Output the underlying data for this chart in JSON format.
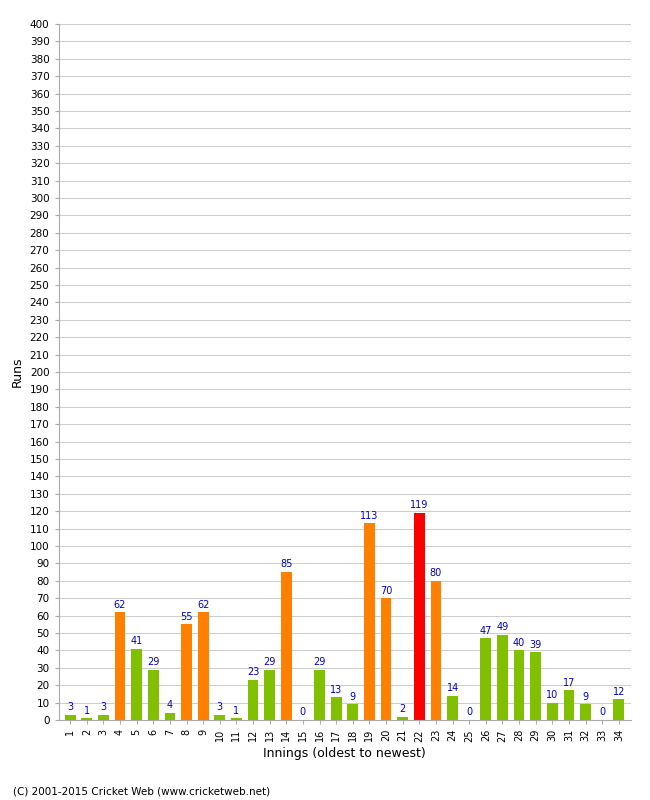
{
  "innings": [
    1,
    2,
    3,
    4,
    5,
    6,
    7,
    8,
    9,
    10,
    11,
    12,
    13,
    14,
    15,
    16,
    17,
    18,
    19,
    20,
    21,
    22,
    23,
    24,
    25,
    26,
    27,
    28,
    29,
    30,
    31,
    32,
    33,
    34
  ],
  "values": [
    3,
    1,
    3,
    62,
    41,
    29,
    4,
    55,
    62,
    3,
    1,
    23,
    29,
    85,
    0,
    29,
    13,
    9,
    113,
    70,
    2,
    119,
    80,
    14,
    0,
    47,
    49,
    40,
    39,
    10,
    17,
    9,
    0,
    12
  ],
  "colors": [
    "#80c000",
    "#80c000",
    "#80c000",
    "#ff8000",
    "#80c000",
    "#80c000",
    "#80c000",
    "#ff8000",
    "#ff8000",
    "#80c000",
    "#80c000",
    "#80c000",
    "#80c000",
    "#ff8000",
    "#80c000",
    "#80c000",
    "#80c000",
    "#80c000",
    "#ff8000",
    "#ff8000",
    "#80c000",
    "#ff0000",
    "#ff8000",
    "#80c000",
    "#80c000",
    "#80c000",
    "#80c000",
    "#80c000",
    "#80c000",
    "#80c000",
    "#80c000",
    "#80c000",
    "#80c000",
    "#80c000"
  ],
  "xlabel": "Innings (oldest to newest)",
  "ylabel": "Runs",
  "ylim": [
    0,
    400
  ],
  "background_color": "#ffffff",
  "grid_color": "#cccccc",
  "label_color": "#0000cc",
  "footer": "(C) 2001-2015 Cricket Web (www.cricketweb.net)"
}
